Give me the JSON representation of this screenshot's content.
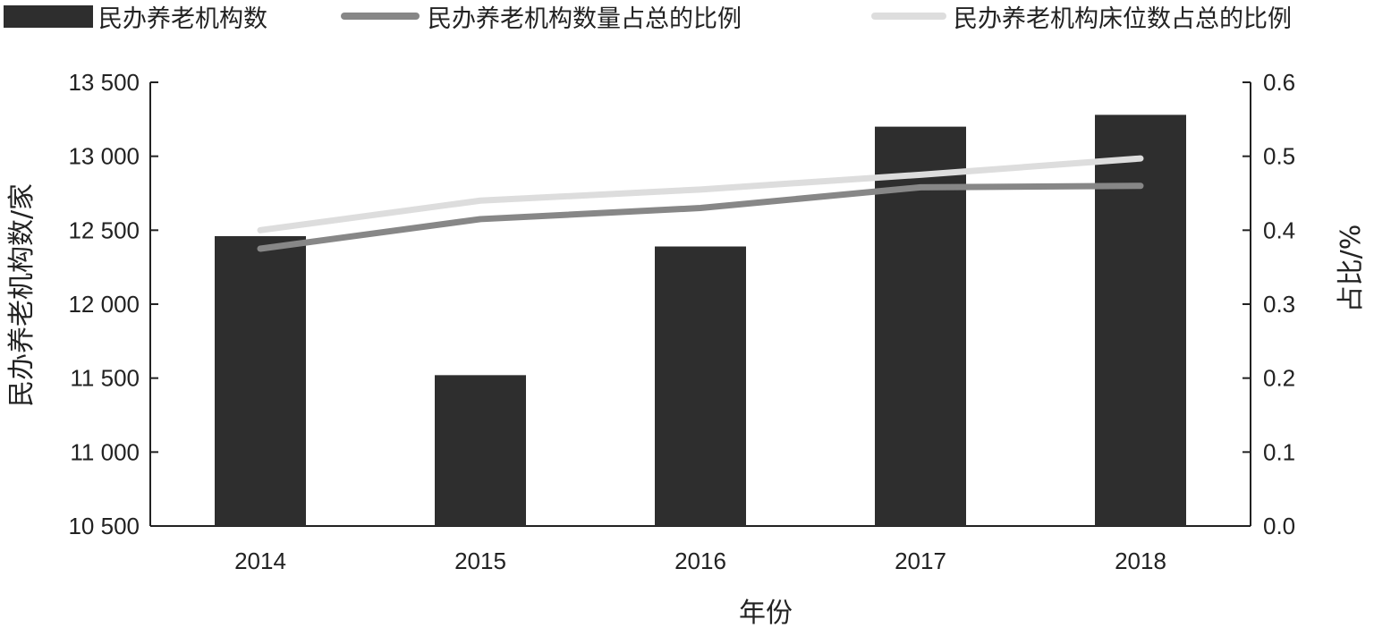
{
  "chart_data": {
    "type": "bar",
    "categories": [
      "2014",
      "2015",
      "2016",
      "2017",
      "2018"
    ],
    "xlabel": "年份",
    "ylabel": "民办养老机构数/家",
    "y2label": "占比/%",
    "ylim": [
      10500,
      13500
    ],
    "y2lim": [
      0.0,
      0.6
    ],
    "yticks": [
      "10 500",
      "11 000",
      "11 500",
      "12 000",
      "12 500",
      "13 000",
      "13 500"
    ],
    "y2ticks": [
      "0.0",
      "0.1",
      "0.2",
      "0.3",
      "0.4",
      "0.5",
      "0.6"
    ],
    "legend_position": "top",
    "grid": false,
    "series": [
      {
        "name": "民办养老机构数",
        "type": "bar",
        "axis": "left",
        "color": "#2e2e2e",
        "values": [
          12460,
          11520,
          12390,
          13200,
          13280
        ]
      },
      {
        "name": "民办养老机构数量占总的比例",
        "type": "line",
        "axis": "right",
        "color": "#878787",
        "values": [
          0.375,
          0.415,
          0.43,
          0.458,
          0.46
        ]
      },
      {
        "name": "民办养老机构床位数占总的比例",
        "type": "line",
        "axis": "right",
        "color": "#dddddd",
        "values": [
          0.4,
          0.44,
          0.455,
          0.475,
          0.497
        ]
      }
    ]
  }
}
